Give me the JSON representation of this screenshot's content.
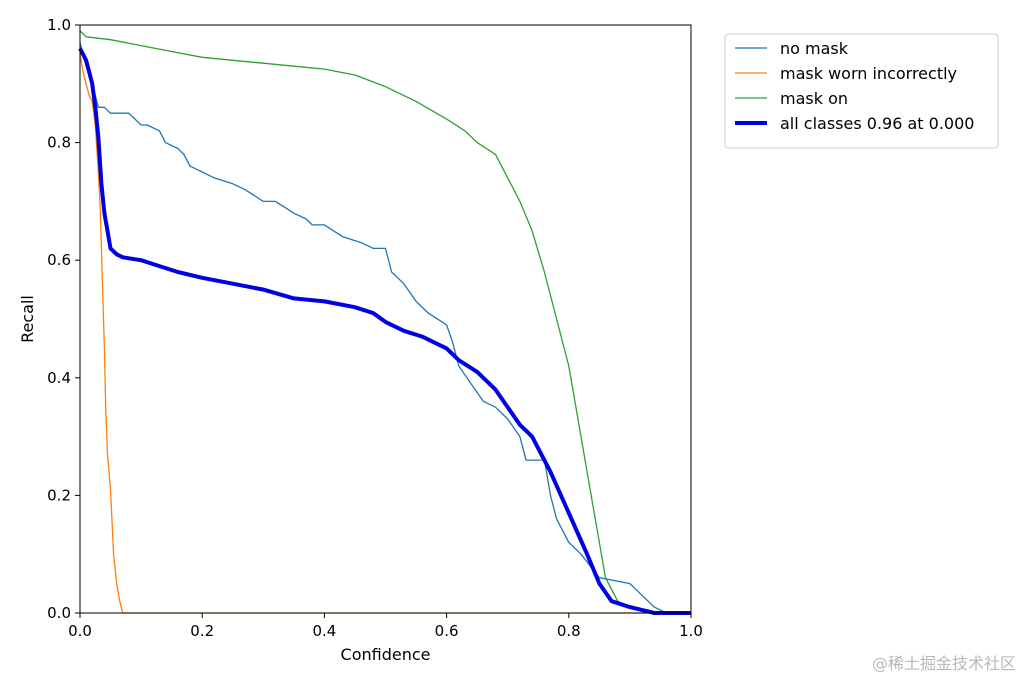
{
  "chart_data": {
    "type": "line",
    "title": "",
    "xlabel": "Confidence",
    "ylabel": "Recall",
    "xlim": [
      0,
      1
    ],
    "ylim": [
      0,
      1
    ],
    "xticks": [
      "0.0",
      "0.2",
      "0.4",
      "0.6",
      "0.8",
      "1.0"
    ],
    "yticks": [
      "0.0",
      "0.2",
      "0.4",
      "0.6",
      "0.8",
      "1.0"
    ],
    "grid": false,
    "legend_position": "outside-top-right",
    "series": [
      {
        "name": "no mask",
        "color": "#1f77b4",
        "x": [
          0.0,
          0.01,
          0.02,
          0.025,
          0.03,
          0.04,
          0.05,
          0.08,
          0.09,
          0.1,
          0.11,
          0.13,
          0.14,
          0.16,
          0.17,
          0.18,
          0.2,
          0.22,
          0.25,
          0.27,
          0.3,
          0.32,
          0.35,
          0.37,
          0.38,
          0.4,
          0.43,
          0.46,
          0.48,
          0.5,
          0.51,
          0.53,
          0.55,
          0.57,
          0.6,
          0.61,
          0.62,
          0.64,
          0.66,
          0.68,
          0.7,
          0.72,
          0.73,
          0.76,
          0.77,
          0.78,
          0.8,
          0.82,
          0.85,
          0.9,
          0.94,
          0.96,
          1.0
        ],
        "y": [
          0.97,
          0.93,
          0.9,
          0.88,
          0.86,
          0.86,
          0.85,
          0.85,
          0.84,
          0.83,
          0.83,
          0.82,
          0.8,
          0.79,
          0.78,
          0.76,
          0.75,
          0.74,
          0.73,
          0.72,
          0.7,
          0.7,
          0.68,
          0.67,
          0.66,
          0.66,
          0.64,
          0.63,
          0.62,
          0.62,
          0.58,
          0.56,
          0.53,
          0.51,
          0.49,
          0.46,
          0.42,
          0.39,
          0.36,
          0.35,
          0.33,
          0.3,
          0.26,
          0.26,
          0.2,
          0.16,
          0.12,
          0.1,
          0.06,
          0.05,
          0.01,
          0.0,
          0.0
        ]
      },
      {
        "name": "mask worn incorrectly",
        "color": "#ff7f0e",
        "x": [
          0.0,
          0.005,
          0.01,
          0.015,
          0.02,
          0.025,
          0.03,
          0.033,
          0.035,
          0.04,
          0.042,
          0.045,
          0.05,
          0.055,
          0.06,
          0.065,
          0.07,
          0.08,
          1.0
        ],
        "y": [
          0.95,
          0.92,
          0.9,
          0.88,
          0.87,
          0.83,
          0.75,
          0.69,
          0.62,
          0.45,
          0.35,
          0.27,
          0.21,
          0.1,
          0.05,
          0.02,
          0.0,
          0.0,
          0.0
        ]
      },
      {
        "name": "mask on",
        "color": "#2ca02c",
        "x": [
          0.0,
          0.01,
          0.05,
          0.1,
          0.15,
          0.2,
          0.25,
          0.3,
          0.35,
          0.4,
          0.45,
          0.5,
          0.55,
          0.6,
          0.63,
          0.65,
          0.68,
          0.7,
          0.72,
          0.74,
          0.76,
          0.78,
          0.8,
          0.82,
          0.84,
          0.86,
          0.88,
          0.9,
          0.92,
          0.94,
          1.0
        ],
        "y": [
          0.99,
          0.98,
          0.975,
          0.965,
          0.955,
          0.945,
          0.94,
          0.935,
          0.93,
          0.925,
          0.915,
          0.895,
          0.87,
          0.84,
          0.82,
          0.8,
          0.78,
          0.74,
          0.7,
          0.65,
          0.58,
          0.5,
          0.42,
          0.3,
          0.18,
          0.06,
          0.02,
          0.01,
          0.005,
          0.0,
          0.0
        ]
      },
      {
        "name": "all classes 0.96 at 0.000",
        "color": "#0000e0",
        "bold": true,
        "x": [
          0.0,
          0.005,
          0.01,
          0.015,
          0.02,
          0.025,
          0.03,
          0.035,
          0.04,
          0.045,
          0.05,
          0.06,
          0.07,
          0.1,
          0.13,
          0.16,
          0.2,
          0.25,
          0.3,
          0.35,
          0.4,
          0.45,
          0.48,
          0.5,
          0.53,
          0.56,
          0.6,
          0.62,
          0.65,
          0.68,
          0.7,
          0.72,
          0.74,
          0.77,
          0.8,
          0.83,
          0.85,
          0.87,
          0.9,
          0.94,
          1.0
        ],
        "y": [
          0.96,
          0.95,
          0.94,
          0.92,
          0.9,
          0.86,
          0.81,
          0.73,
          0.68,
          0.65,
          0.62,
          0.61,
          0.605,
          0.6,
          0.59,
          0.58,
          0.57,
          0.56,
          0.55,
          0.535,
          0.53,
          0.52,
          0.51,
          0.495,
          0.48,
          0.47,
          0.45,
          0.43,
          0.41,
          0.38,
          0.35,
          0.32,
          0.3,
          0.24,
          0.17,
          0.1,
          0.05,
          0.02,
          0.01,
          0.0,
          0.0
        ]
      }
    ]
  },
  "watermark": "@稀土掘金技术社区"
}
